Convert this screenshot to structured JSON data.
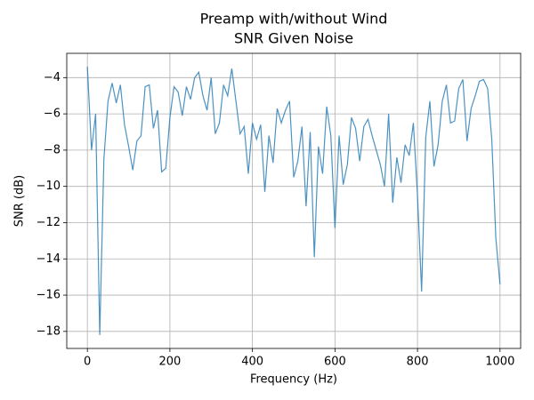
{
  "chart_data": {
    "type": "line",
    "title": [
      "Preamp with/without Wind",
      "SNR Given Noise"
    ],
    "x_label": "Frequency (Hz)",
    "y_label": "SNR (dB)",
    "x": [
      0,
      10,
      20,
      30,
      40,
      50,
      60,
      70,
      80,
      90,
      100,
      110,
      120,
      130,
      140,
      150,
      160,
      170,
      180,
      190,
      200,
      210,
      220,
      230,
      240,
      250,
      260,
      270,
      280,
      290,
      300,
      310,
      320,
      330,
      340,
      350,
      360,
      370,
      380,
      390,
      400,
      410,
      420,
      430,
      440,
      450,
      460,
      470,
      480,
      490,
      500,
      510,
      520,
      530,
      540,
      550,
      560,
      570,
      580,
      590,
      600,
      610,
      620,
      630,
      640,
      650,
      660,
      670,
      680,
      690,
      700,
      710,
      720,
      730,
      740,
      750,
      760,
      770,
      780,
      790,
      800,
      810,
      820,
      830,
      840,
      850,
      860,
      870,
      880,
      890,
      900,
      910,
      920,
      930,
      940,
      950,
      960,
      970,
      980,
      990,
      1000
    ],
    "series": [
      {
        "color": "#1f77b4",
        "values": [
          -3.4,
          -8.0,
          -6.0,
          -18.2,
          -8.5,
          -5.3,
          -4.3,
          -5.4,
          -4.4,
          -6.6,
          -7.8,
          -9.1,
          -7.5,
          -7.2,
          -4.5,
          -4.4,
          -6.8,
          -5.8,
          -9.2,
          -9.0,
          -6.2,
          -4.5,
          -4.8,
          -6.1,
          -4.5,
          -5.2,
          -4.0,
          -3.7,
          -5.0,
          -5.8,
          -4.0,
          -7.1,
          -6.5,
          -4.4,
          -5.0,
          -3.5,
          -5.3,
          -7.1,
          -6.7,
          -9.3,
          -6.5,
          -7.4,
          -6.6,
          -10.3,
          -7.2,
          -8.7,
          -5.7,
          -6.5,
          -5.8,
          -5.3,
          -9.5,
          -8.6,
          -6.7,
          -11.1,
          -7.0,
          -13.9,
          -7.8,
          -9.3,
          -5.6,
          -7.2,
          -12.3,
          -7.2,
          -9.9,
          -8.8,
          -6.2,
          -6.8,
          -8.6,
          -6.7,
          -6.3,
          -7.2,
          -8.0,
          -8.8,
          -10.0,
          -6.0,
          -10.9,
          -8.4,
          -9.8,
          -7.7,
          -8.3,
          -6.5,
          -10.5,
          -15.8,
          -7.3,
          -5.3,
          -8.9,
          -7.7,
          -5.3,
          -4.4,
          -6.5,
          -6.4,
          -4.6,
          -4.1,
          -7.5,
          -5.7,
          -5.0,
          -4.2,
          -4.1,
          -4.6,
          -7.4,
          -12.9,
          -15.4
        ]
      }
    ],
    "xlim": [
      -50,
      1050
    ],
    "ylim": [
      -18.94,
      -2.66
    ],
    "xticks": [
      0,
      200,
      400,
      600,
      800,
      1000
    ],
    "yticks": [
      {
        "value": -18,
        "label": "−18"
      },
      {
        "value": -16,
        "label": "−16"
      },
      {
        "value": -14,
        "label": "−14"
      },
      {
        "value": -12,
        "label": "−12"
      },
      {
        "value": -10,
        "label": "−10"
      },
      {
        "value": -8,
        "label": "−8"
      },
      {
        "value": -6,
        "label": "−6"
      },
      {
        "value": -4,
        "label": "−4"
      }
    ],
    "grid": true
  }
}
